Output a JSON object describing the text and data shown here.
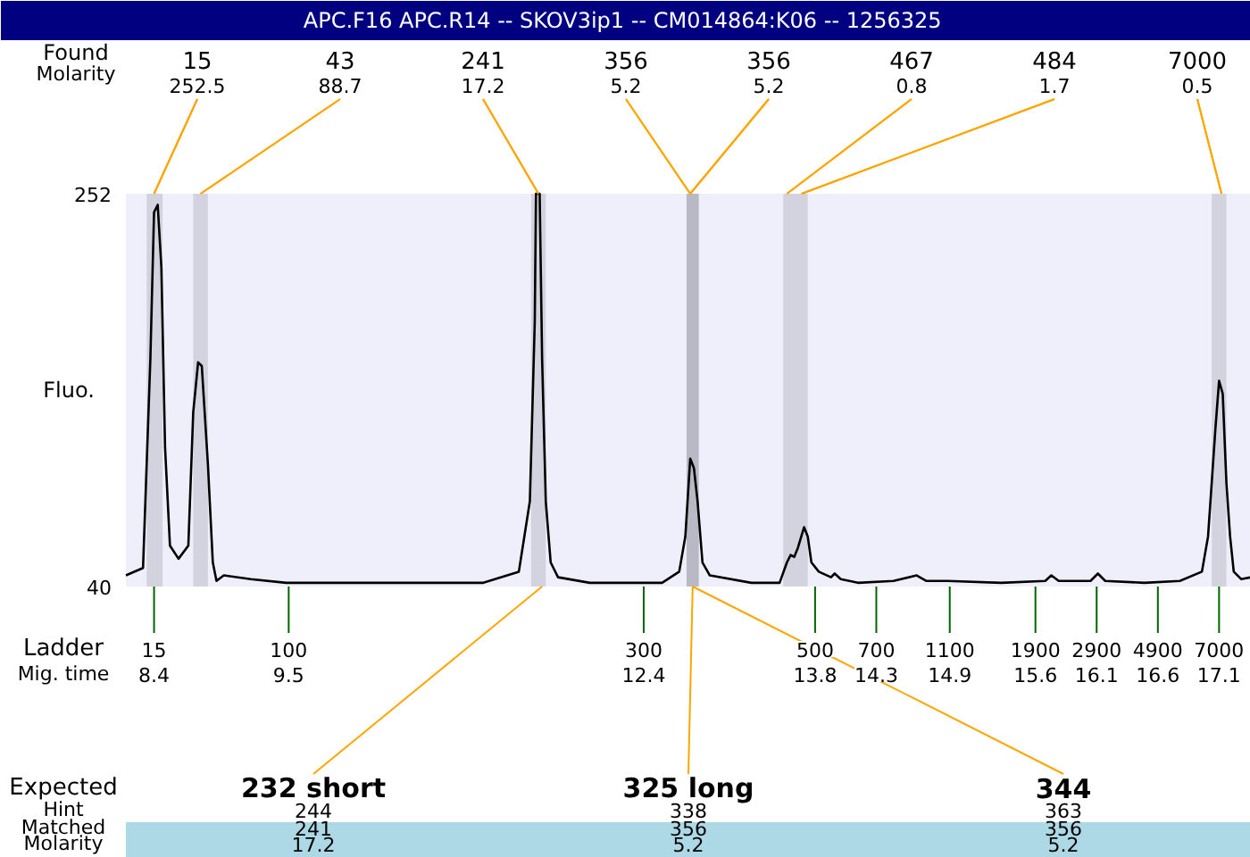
{
  "chart_data": {
    "type": "line",
    "title": "APC.F16  APC.R14 -- SKOV3ip1 -- CM014864:K06 -- 1256325",
    "ylabel": "Fluo.",
    "xlim": [
      8.17,
      17.36
    ],
    "ylim": [
      40,
      252
    ],
    "yticks": [
      40,
      252
    ],
    "xticks": [
      8.4,
      9.5,
      12.4,
      13.8,
      14.3,
      14.9,
      15.6,
      16.1,
      16.6,
      17.1
    ],
    "grid": false,
    "marker": "none",
    "line_style": "solid",
    "series": [
      {
        "color": "#000000",
        "x": [
          8.17,
          8.31,
          8.37,
          8.4,
          8.43,
          8.46,
          8.49,
          8.53,
          8.6,
          8.68,
          8.72,
          8.76,
          8.79,
          8.84,
          8.88,
          8.91,
          8.97,
          9.19,
          9.48,
          10.06,
          10.79,
          11.09,
          11.38,
          11.47,
          11.51,
          11.52,
          11.55,
          11.57,
          11.6,
          11.64,
          11.7,
          11.96,
          12.25,
          12.55,
          12.69,
          12.74,
          12.78,
          12.81,
          12.84,
          12.88,
          12.94,
          13.28,
          13.51,
          13.57,
          13.6,
          13.63,
          13.66,
          13.71,
          13.74,
          13.77,
          13.83,
          13.93,
          13.96,
          14.01,
          14.15,
          14.44,
          14.63,
          14.71,
          14.88,
          15.32,
          15.68,
          15.73,
          15.79,
          16.05,
          16.11,
          16.17,
          16.49,
          16.78,
          16.96,
          17.01,
          17.07,
          17.1,
          17.13,
          17.16,
          17.19,
          17.22,
          17.28,
          17.36
        ],
        "values": [
          46,
          50,
          163,
          242,
          246,
          212,
          115,
          62,
          55,
          62,
          134,
          161,
          159,
          106,
          53,
          43,
          46,
          44,
          42,
          42,
          42,
          42,
          48,
          86,
          183,
          252,
          252,
          163,
          86,
          53,
          45,
          42,
          42,
          42,
          48,
          67,
          109,
          104,
          86,
          53,
          46,
          42,
          42,
          53,
          57,
          56,
          61,
          72,
          67,
          53,
          48,
          45,
          47,
          44,
          42,
          43,
          46,
          43,
          43,
          42,
          43,
          46,
          43,
          43,
          47,
          43,
          42,
          43,
          48,
          67,
          125,
          151,
          144,
          96,
          67,
          48,
          44,
          45
        ]
      }
    ],
    "bands": [
      {
        "axis": "x",
        "from": 8.34,
        "to": 8.47,
        "color": "#d3d3e0"
      },
      {
        "axis": "x",
        "from": 8.72,
        "to": 8.84,
        "color": "#d3d3e0"
      },
      {
        "axis": "x",
        "from": 11.48,
        "to": 11.6,
        "color": "#d3d3e0"
      },
      {
        "axis": "x",
        "from": 12.75,
        "to": 12.85,
        "color": "#b9b9c6"
      },
      {
        "axis": "x",
        "from": 13.54,
        "to": 13.74,
        "color": "#d3d3e0"
      },
      {
        "axis": "x",
        "from": 17.04,
        "to": 17.16,
        "color": "#d3d3e0"
      }
    ],
    "annotations": [
      "Found",
      "Molarity",
      "Ladder",
      "Mig. time",
      "Expected",
      "Hint",
      "Matched",
      "Molarity",
      {
        "text": "15",
        "x": 8.4,
        "y": 40
      },
      {
        "text": "100",
        "x": 9.5,
        "y": 40
      },
      {
        "text": "300",
        "x": 12.4,
        "y": 40
      },
      {
        "text": "500",
        "x": 13.8,
        "y": 40
      },
      {
        "text": "700",
        "x": 14.3,
        "y": 40
      },
      {
        "text": "1100",
        "x": 14.9,
        "y": 40
      },
      {
        "text": "1900",
        "x": 15.6,
        "y": 40
      },
      {
        "text": "2900",
        "x": 16.1,
        "y": 40
      },
      {
        "text": "4900",
        "x": 16.6,
        "y": 40
      },
      {
        "text": "7000",
        "x": 17.1,
        "y": 40
      },
      {
        "text": "15",
        "x": 8.4,
        "y": 252
      },
      {
        "text": "252.5",
        "x": 8.4,
        "y": 252
      },
      {
        "text": "43",
        "x": 8.78,
        "y": 252
      },
      {
        "text": "88.7",
        "x": 8.78,
        "y": 252
      },
      {
        "text": "241",
        "x": 11.54,
        "y": 252
      },
      {
        "text": "17.2",
        "x": 11.54,
        "y": 252
      },
      {
        "text": "356",
        "x": 12.78,
        "y": 252
      },
      {
        "text": "5.2",
        "x": 12.78,
        "y": 252
      },
      {
        "text": "356",
        "x": 12.78,
        "y": 252
      },
      {
        "text": "5.2",
        "x": 12.78,
        "y": 252
      },
      {
        "text": "467",
        "x": 13.57,
        "y": 252
      },
      {
        "text": "0.8",
        "x": 13.57,
        "y": 252
      },
      {
        "text": "484",
        "x": 13.69,
        "y": 252
      },
      {
        "text": "1.7",
        "x": 13.69,
        "y": 252
      },
      {
        "text": "7000",
        "x": 17.12,
        "y": 252
      },
      {
        "text": "0.5",
        "x": 17.12,
        "y": 252
      },
      {
        "text": "232 short",
        "x": 11.57,
        "y": 40
      },
      "244",
      "241",
      "17.2",
      {
        "text": "325 long",
        "x": 12.8,
        "y": 40
      },
      "338",
      "356",
      "5.2",
      {
        "text": "344",
        "x": 12.8,
        "y": 40
      },
      "363",
      "356",
      "5.2"
    ]
  }
}
